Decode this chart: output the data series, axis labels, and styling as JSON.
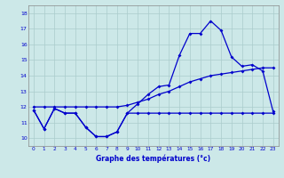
{
  "xlabel": "Graphe des températures (°c)",
  "bg_color": "#cce8e8",
  "grid_color": "#aacccc",
  "line_color": "#0000cc",
  "hours": [
    0,
    1,
    2,
    3,
    4,
    5,
    6,
    7,
    8,
    9,
    10,
    11,
    12,
    13,
    14,
    15,
    16,
    17,
    18,
    19,
    20,
    21,
    22,
    23
  ],
  "temp_line1": [
    11.8,
    10.6,
    11.9,
    11.6,
    11.6,
    10.7,
    10.1,
    10.1,
    10.4,
    11.6,
    12.2,
    12.8,
    13.3,
    13.4,
    15.3,
    16.7,
    16.7,
    17.5,
    16.9,
    15.2,
    14.6,
    14.7,
    14.3,
    11.7
  ],
  "temp_line2": [
    12.0,
    12.0,
    12.0,
    12.0,
    12.0,
    12.0,
    12.0,
    12.0,
    12.0,
    12.1,
    12.3,
    12.5,
    12.8,
    13.0,
    13.3,
    13.6,
    13.8,
    14.0,
    14.1,
    14.2,
    14.3,
    14.4,
    14.5,
    14.5
  ],
  "temp_line3": [
    11.8,
    10.6,
    11.9,
    11.6,
    11.6,
    10.7,
    10.1,
    10.1,
    10.4,
    11.6,
    11.6,
    11.6,
    11.6,
    11.6,
    11.6,
    11.6,
    11.6,
    11.6,
    11.6,
    11.6,
    11.6,
    11.6,
    11.6,
    11.6
  ],
  "ylim": [
    9.5,
    18.5
  ],
  "xlim": [
    -0.5,
    23.5
  ],
  "yticks": [
    10,
    11,
    12,
    13,
    14,
    15,
    16,
    17,
    18
  ],
  "xticks": [
    0,
    1,
    2,
    3,
    4,
    5,
    6,
    7,
    8,
    9,
    10,
    11,
    12,
    13,
    14,
    15,
    16,
    17,
    18,
    19,
    20,
    21,
    22,
    23
  ]
}
